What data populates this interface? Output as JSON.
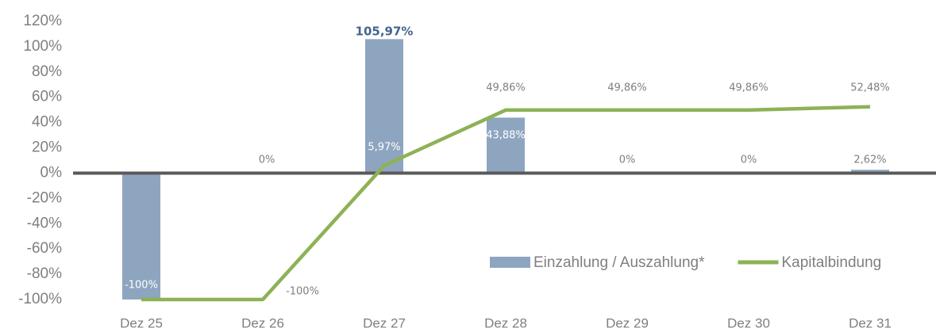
{
  "chart_data": {
    "type": "bar",
    "categories": [
      "Dez 25",
      "Dez 26",
      "Dez 27",
      "Dez 28",
      "Dez 29",
      "Dez 30",
      "Dez 31"
    ],
    "series": [
      {
        "name": "Einzahlung / Auszahlung*",
        "type": "bar",
        "color": "#8ea5c0",
        "values": [
          -100,
          0,
          105.97,
          43.88,
          0,
          0,
          2.62
        ],
        "value_labels": [
          "-100%",
          "0%",
          "105,97%",
          "43,88%",
          "0%",
          "0%",
          "2,62%"
        ]
      },
      {
        "name": "Kapitalbindung",
        "type": "line",
        "color": "#8db255",
        "values": [
          -100,
          -100,
          5.97,
          49.86,
          49.86,
          49.86,
          52.48
        ],
        "value_labels": [
          null,
          "-100%",
          "5,97%",
          "49,86%",
          "49,86%",
          "49,86%",
          "52,48%"
        ]
      }
    ],
    "ylim": [
      -100,
      120
    ],
    "yticks": [
      {
        "value": -100,
        "label": "-100%"
      },
      {
        "value": -80,
        "label": "-80%"
      },
      {
        "value": -60,
        "label": "-60%"
      },
      {
        "value": -40,
        "label": "-40%"
      },
      {
        "value": -20,
        "label": "-20%"
      },
      {
        "value": 0,
        "label": "0%"
      },
      {
        "value": 20,
        "label": "20%"
      },
      {
        "value": 40,
        "label": "40%"
      },
      {
        "value": 60,
        "label": "60%"
      },
      {
        "value": 80,
        "label": "80%"
      },
      {
        "value": 100,
        "label": "100%"
      },
      {
        "value": 120,
        "label": "120%"
      }
    ],
    "legend": "bottom-right"
  }
}
